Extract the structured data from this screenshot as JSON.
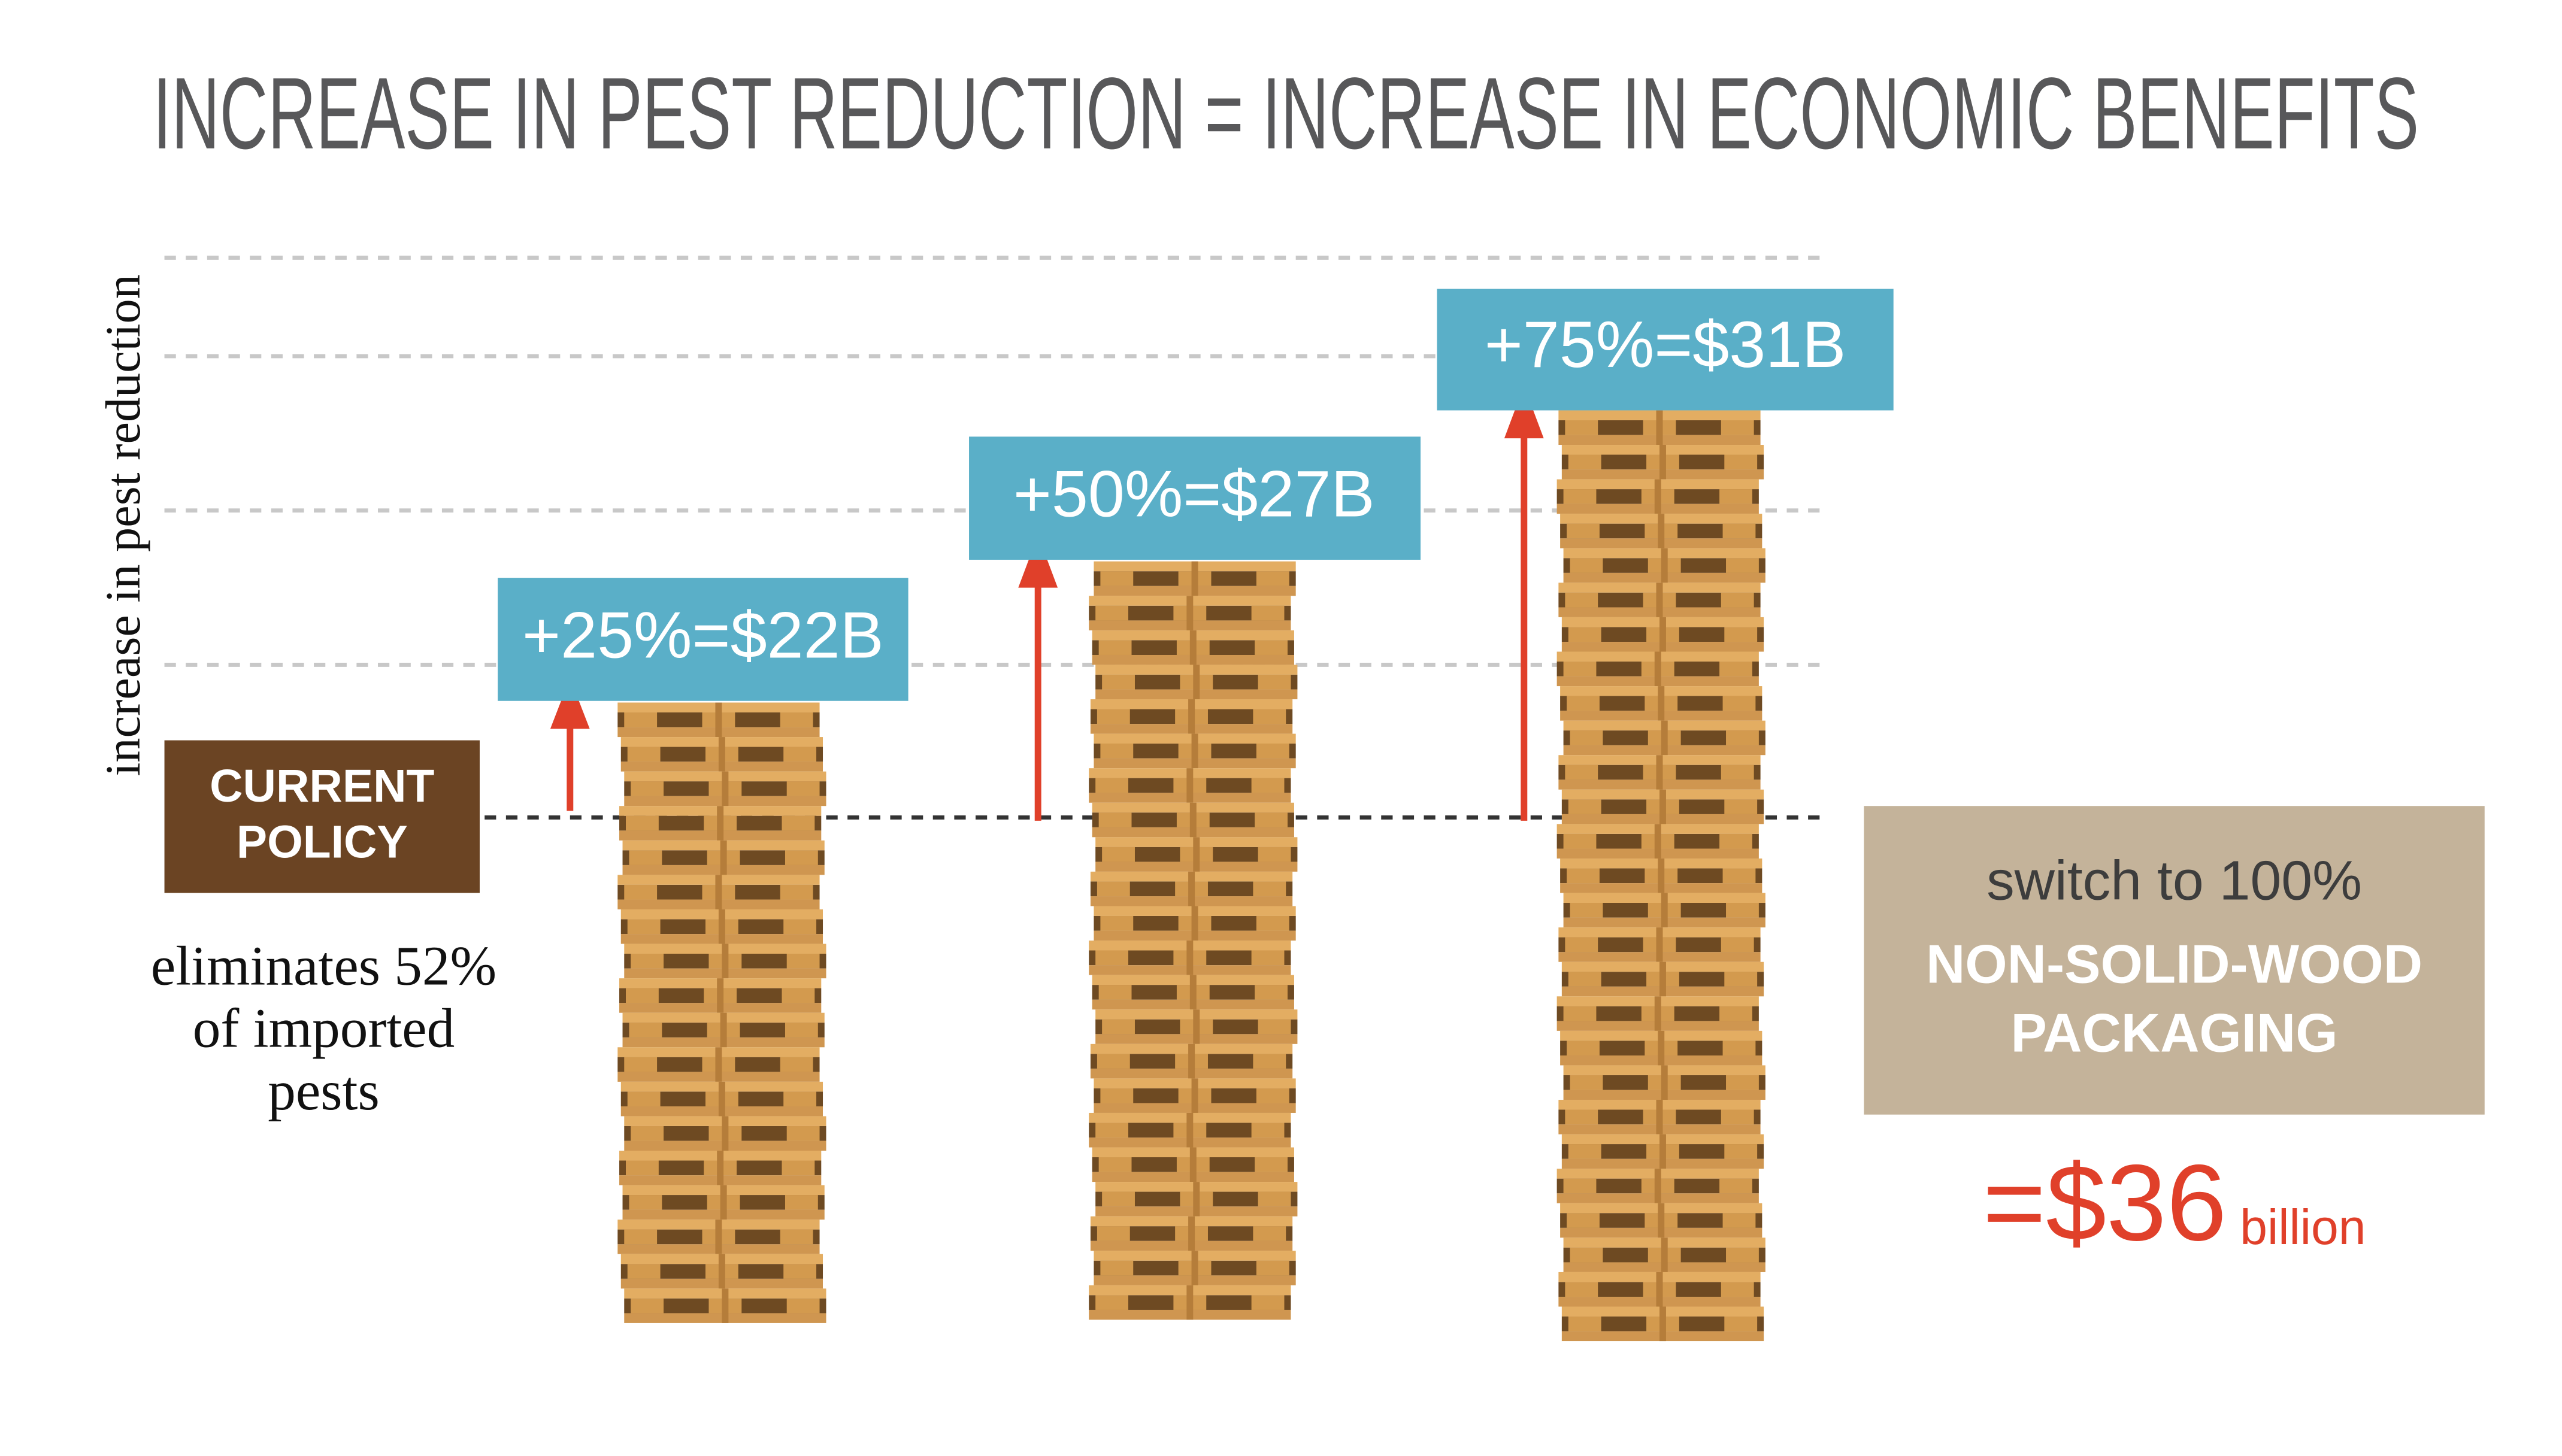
{
  "title": "INCREASE IN PEST REDUCTION = INCREASE IN ECONOMIC BENEFITS",
  "y_axis_label": "increase in pest reduction",
  "current_policy": {
    "label_lines": [
      "CURRENT",
      "POLICY"
    ],
    "note_lines": [
      "eliminates 52%",
      "of imported",
      "pests"
    ]
  },
  "scenarios": [
    {
      "label": "+25%=$22B"
    },
    {
      "label": "+50%=$27B"
    },
    {
      "label": "+75%=$31B"
    }
  ],
  "switch": {
    "lines": [
      "switch to 100%",
      "NON-SOLID-WOOD",
      "PACKAGING"
    ],
    "total": "=$36",
    "unit": "billion"
  }
}
